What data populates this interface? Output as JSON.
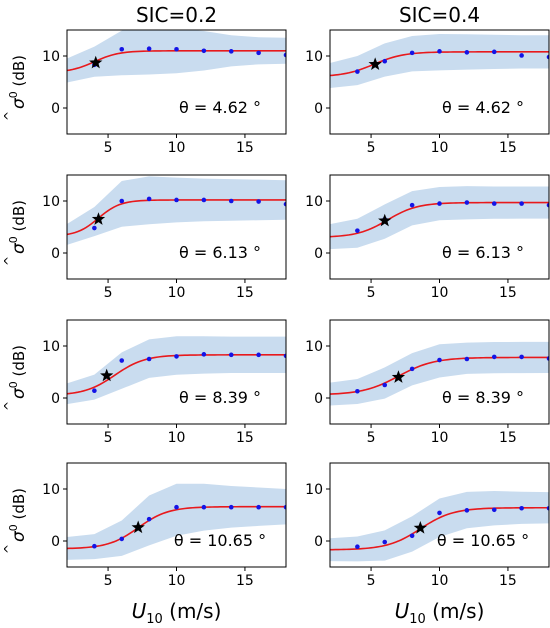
{
  "figure": {
    "column_titles": [
      "SIC=0.2",
      "SIC=0.4"
    ],
    "xlabel_main": "U",
    "xlabel_sub": "10",
    "xlabel_unit": " (m/s)",
    "ylabel_main": "σ",
    "ylabel_sup": "0",
    "ylabel_unit": " (dB)"
  },
  "colors": {
    "band": "#c9dcef",
    "fit": "#e8191c",
    "points": "#1414e6",
    "star": "#000000",
    "axes": "#000000"
  },
  "chart_data": [
    {
      "type": "scatter",
      "row": 0,
      "col": 0,
      "annotation": "θ = 4.62 °",
      "xlim": [
        2,
        18
      ],
      "ylim": [
        -5,
        15
      ],
      "xticks": [
        5,
        10,
        15
      ],
      "yticks": [
        0,
        10
      ],
      "points": {
        "x": [
          4,
          6,
          8,
          10,
          12,
          14,
          16,
          18
        ],
        "y": [
          8.3,
          11.3,
          11.4,
          11.3,
          11.0,
          10.9,
          10.6,
          10.2
        ]
      },
      "fit": {
        "low": 6.8,
        "high": 11.0,
        "mid": 4.0,
        "scale": 0.9
      },
      "band_width": [
        2.3,
        2.9,
        4.3,
        4.5,
        4.3,
        3.8,
        3.0,
        2.6,
        2.5
      ],
      "star": {
        "x": 4.1,
        "y": 8.7
      }
    },
    {
      "type": "scatter",
      "row": 0,
      "col": 1,
      "annotation": "θ = 4.62 °",
      "xlim": [
        2,
        18
      ],
      "ylim": [
        -5,
        15
      ],
      "xticks": [
        5,
        10,
        15
      ],
      "yticks": [
        0,
        10
      ],
      "points": {
        "x": [
          4,
          6,
          8,
          10,
          12,
          14,
          16,
          18
        ],
        "y": [
          7.0,
          9.0,
          10.6,
          10.9,
          10.7,
          10.8,
          10.1,
          9.8
        ]
      },
      "fit": {
        "low": 6.0,
        "high": 10.8,
        "mid": 5.2,
        "scale": 1.1
      },
      "band_width": [
        2.4,
        2.8,
        3.2,
        3.4,
        3.5,
        3.4,
        3.3,
        3.2,
        3.2
      ],
      "star": {
        "x": 5.3,
        "y": 8.4
      }
    },
    {
      "type": "scatter",
      "row": 1,
      "col": 0,
      "annotation": "θ = 6.13 °",
      "xlim": [
        2,
        18
      ],
      "ylim": [
        -5,
        15
      ],
      "xticks": [
        5,
        10,
        15
      ],
      "yticks": [
        0,
        10
      ],
      "points": {
        "x": [
          4,
          6,
          8,
          10,
          12,
          14,
          16,
          18
        ],
        "y": [
          4.8,
          10.0,
          10.4,
          10.2,
          10.2,
          10.0,
          9.9,
          9.4
        ]
      },
      "fit": {
        "low": 3.2,
        "high": 10.2,
        "mid": 4.3,
        "scale": 0.8
      },
      "band_width": [
        2.0,
        2.8,
        4.4,
        4.6,
        4.3,
        4.1,
        4.0,
        3.9,
        3.8
      ],
      "star": {
        "x": 4.3,
        "y": 6.5
      }
    },
    {
      "type": "scatter",
      "row": 1,
      "col": 1,
      "annotation": "θ = 6.13 °",
      "xlim": [
        2,
        18
      ],
      "ylim": [
        -5,
        15
      ],
      "xticks": [
        5,
        10,
        15
      ],
      "yticks": [
        0,
        10
      ],
      "points": {
        "x": [
          4,
          6,
          8,
          10,
          12,
          14,
          16,
          18
        ],
        "y": [
          4.3,
          6.5,
          9.2,
          9.5,
          9.7,
          9.5,
          9.5,
          9.2
        ]
      },
      "fit": {
        "low": 3.0,
        "high": 9.7,
        "mid": 6.2,
        "scale": 1.1
      },
      "band_width": [
        2.4,
        2.8,
        3.3,
        3.3,
        3.2,
        3.2,
        3.1,
        3.1,
        3.1
      ],
      "star": {
        "x": 6.0,
        "y": 6.2
      }
    },
    {
      "type": "scatter",
      "row": 2,
      "col": 0,
      "annotation": "θ = 8.39 °",
      "xlim": [
        2,
        18
      ],
      "ylim": [
        -5,
        15
      ],
      "xticks": [
        5,
        10,
        15
      ],
      "yticks": [
        0,
        10
      ],
      "points": {
        "x": [
          4,
          6,
          8,
          10,
          12,
          14,
          16,
          18
        ],
        "y": [
          1.4,
          7.2,
          7.5,
          8.0,
          8.4,
          8.3,
          8.3,
          8.1
        ]
      },
      "fit": {
        "low": 0.5,
        "high": 8.3,
        "mid": 5.5,
        "scale": 1.1
      },
      "band_width": [
        2.0,
        2.4,
        3.5,
        3.7,
        3.7,
        3.6,
        3.5,
        3.5,
        3.5
      ],
      "star": {
        "x": 4.9,
        "y": 4.3
      }
    },
    {
      "type": "scatter",
      "row": 2,
      "col": 1,
      "annotation": "θ = 8.39 °",
      "xlim": [
        2,
        18
      ],
      "ylim": [
        -5,
        15
      ],
      "xticks": [
        5,
        10,
        15
      ],
      "yticks": [
        0,
        10
      ],
      "points": {
        "x": [
          4,
          6,
          8,
          10,
          12,
          14,
          16,
          18
        ],
        "y": [
          1.3,
          2.5,
          5.6,
          7.3,
          7.5,
          7.9,
          7.9,
          7.6
        ]
      },
      "fit": {
        "low": 0.6,
        "high": 7.8,
        "mid": 7.0,
        "scale": 1.3
      },
      "band_width": [
        2.2,
        2.4,
        3.0,
        3.1,
        3.2,
        3.0,
        3.0,
        3.0,
        3.0
      ],
      "star": {
        "x": 7.0,
        "y": 4.0
      }
    },
    {
      "type": "scatter",
      "row": 3,
      "col": 0,
      "annotation": "θ = 10.65 °",
      "xlim": [
        2,
        18
      ],
      "ylim": [
        -5,
        15
      ],
      "xticks": [
        5,
        10,
        15
      ],
      "yticks": [
        0,
        10
      ],
      "points": {
        "x": [
          4,
          6,
          8,
          10,
          12,
          14,
          16,
          18
        ],
        "y": [
          -1.0,
          0.4,
          4.2,
          6.5,
          6.5,
          6.5,
          6.5,
          6.5
        ]
      },
      "fit": {
        "low": -1.5,
        "high": 6.6,
        "mid": 7.2,
        "scale": 1.1
      },
      "band_width": [
        2.2,
        2.4,
        3.4,
        4.8,
        5.0,
        4.5,
        4.0,
        3.7,
        3.4
      ],
      "star": {
        "x": 7.2,
        "y": 2.6
      }
    },
    {
      "type": "scatter",
      "row": 3,
      "col": 1,
      "annotation": "θ = 10.65 °",
      "xlim": [
        2,
        18
      ],
      "ylim": [
        -5,
        15
      ],
      "xticks": [
        5,
        10,
        15
      ],
      "yticks": [
        0,
        10
      ],
      "points": {
        "x": [
          4,
          6,
          8,
          10,
          12,
          14,
          16,
          18
        ],
        "y": [
          -1.1,
          -0.2,
          1.0,
          5.4,
          5.9,
          6.0,
          6.3,
          6.3
        ]
      },
      "fit": {
        "low": -1.7,
        "high": 6.4,
        "mid": 8.6,
        "scale": 1.2
      },
      "band_width": [
        2.2,
        2.4,
        2.9,
        3.4,
        3.7,
        3.5,
        3.3,
        3.1,
        3.0
      ],
      "star": {
        "x": 8.6,
        "y": 2.5
      }
    }
  ]
}
